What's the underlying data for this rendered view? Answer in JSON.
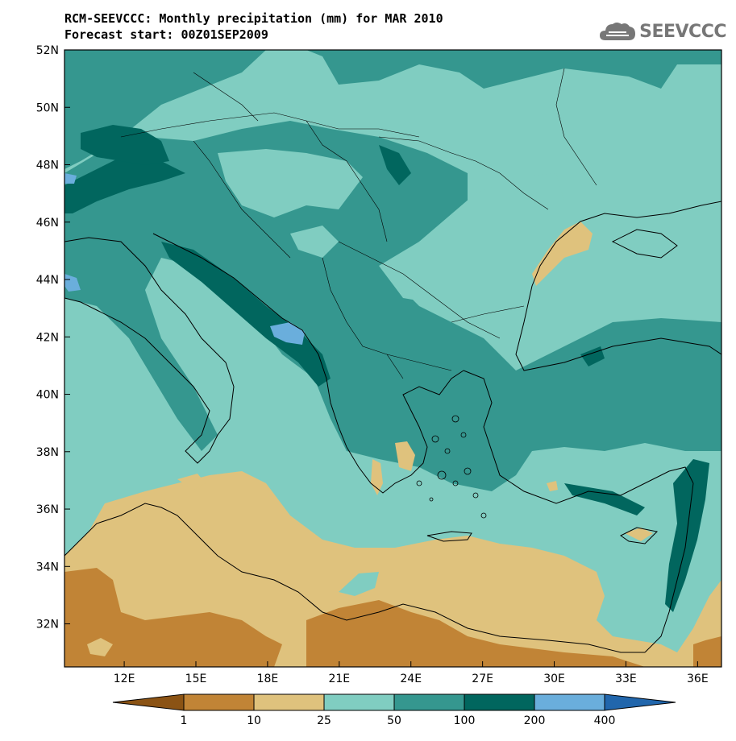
{
  "title": {
    "line1": "RCM-SEEVCCC: Monthly precipitation (mm) for MAR 2010",
    "line2": "Forecast start: 00Z01SEP2009"
  },
  "logo": {
    "text": "SEEVCCC",
    "icon": "cloud-icon"
  },
  "map": {
    "lon_ticks": [
      "12E",
      "15E",
      "18E",
      "21E",
      "24E",
      "27E",
      "30E",
      "33E",
      "36E"
    ],
    "lat_ticks": [
      "52N",
      "50N",
      "48N",
      "46N",
      "44N",
      "42N",
      "40N",
      "38N",
      "36N",
      "34N",
      "32N"
    ],
    "lon_range": [
      9.5,
      37.0
    ],
    "lat_range": [
      30.5,
      52.0
    ]
  },
  "colorbar": {
    "labels": [
      "1",
      "10",
      "25",
      "50",
      "100",
      "200",
      "400"
    ],
    "colors": [
      "#8b5314",
      "#c18436",
      "#dfc27d",
      "#80cdc1",
      "#35978f",
      "#01665e",
      "#6aaedc",
      "#2166ac"
    ]
  }
}
